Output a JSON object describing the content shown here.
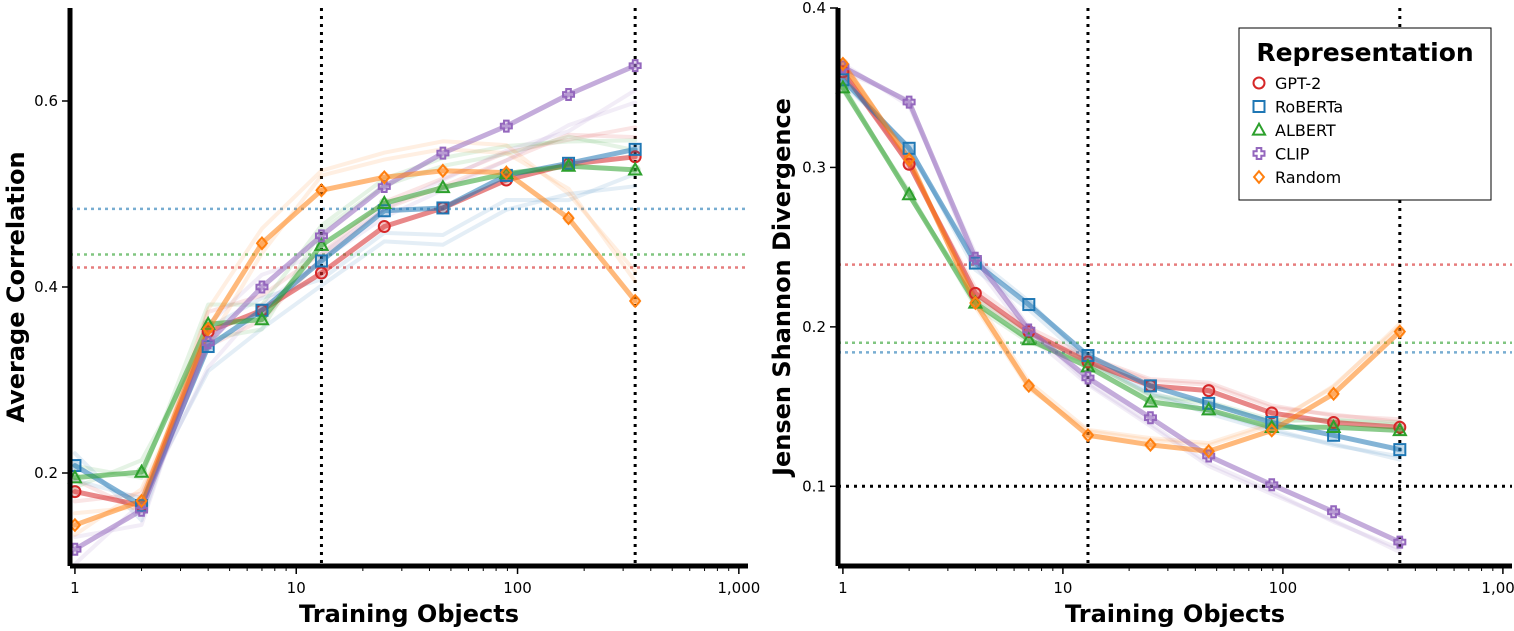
{
  "colors": {
    "GPT-2": "#d62728",
    "RoBERTa": "#1f77b4",
    "ALBERT": "#2ca02c",
    "CLIP": "#9467bd",
    "Random": "#ff7f0e"
  },
  "legend": {
    "title": "Representation",
    "entries": [
      {
        "name": "GPT-2",
        "marker": "circle"
      },
      {
        "name": "RoBERTa",
        "marker": "square"
      },
      {
        "name": "ALBERT",
        "marker": "triangle"
      },
      {
        "name": "CLIP",
        "marker": "plus"
      },
      {
        "name": "Random",
        "marker": "diamond"
      }
    ]
  },
  "chart_data": [
    {
      "type": "line",
      "xscale": "log",
      "xlabel": "Training Objects",
      "ylabel": "Average Correlation",
      "xlim": [
        0.95,
        1100
      ],
      "ylim": [
        0.1,
        0.7
      ],
      "xticks": [
        1,
        10,
        100,
        1000
      ],
      "xtick_labels": [
        "1",
        "10",
        "100",
        "1,000"
      ],
      "yticks": [
        0.2,
        0.4,
        0.6
      ],
      "ytick_labels": [
        "0.2",
        "0.4",
        "0.6"
      ],
      "x": [
        1,
        2,
        4,
        7,
        13,
        25,
        46,
        89,
        170,
        340
      ],
      "vlines": [
        13,
        340
      ],
      "hlines": [
        {
          "series": "RoBERTa",
          "y": 0.484
        },
        {
          "series": "ALBERT",
          "y": 0.435
        },
        {
          "series": "GPT-2",
          "y": 0.421
        }
      ],
      "series": [
        {
          "name": "GPT-2",
          "values": [
            0.18,
            0.165,
            0.352,
            0.375,
            0.415,
            0.465,
            0.485,
            0.515,
            0.532,
            0.54
          ]
        },
        {
          "name": "RoBERTa",
          "values": [
            0.208,
            0.165,
            0.336,
            0.375,
            0.428,
            0.482,
            0.485,
            0.52,
            0.533,
            0.548
          ]
        },
        {
          "name": "ALBERT",
          "values": [
            0.195,
            0.201,
            0.36,
            0.365,
            0.445,
            0.49,
            0.507,
            0.522,
            0.53,
            0.526
          ]
        },
        {
          "name": "CLIP",
          "values": [
            0.118,
            0.16,
            0.34,
            0.4,
            0.455,
            0.508,
            0.544,
            0.573,
            0.607,
            0.638
          ]
        },
        {
          "name": "Random",
          "values": [
            0.144,
            0.17,
            0.355,
            0.447,
            0.504,
            0.518,
            0.525,
            0.523,
            0.474,
            0.385
          ]
        }
      ]
    },
    {
      "type": "line",
      "xscale": "log",
      "xlabel": "Training Objects",
      "ylabel": "Jensen Shannon Divergence",
      "xlim": [
        0.95,
        1100
      ],
      "ylim": [
        0.05,
        0.4
      ],
      "xticks": [
        1,
        10,
        100,
        1000
      ],
      "xtick_labels": [
        "1",
        "10",
        "100",
        "1,000"
      ],
      "yticks": [
        0.1,
        0.2,
        0.3,
        0.4
      ],
      "ytick_labels": [
        "0.1",
        "0.2",
        "0.3",
        "0.4"
      ],
      "x": [
        1,
        2,
        4,
        7,
        13,
        25,
        46,
        89,
        170,
        340
      ],
      "vlines": [
        13,
        340
      ],
      "hlines": [
        {
          "series": "GPT-2",
          "y": 0.239
        },
        {
          "series": "ALBERT",
          "y": 0.19
        },
        {
          "series": "RoBERTa",
          "y": 0.184
        },
        {
          "series": "black",
          "y": 0.1
        }
      ],
      "series": [
        {
          "name": "GPT-2",
          "values": [
            0.36,
            0.302,
            0.221,
            0.197,
            0.178,
            0.163,
            0.16,
            0.146,
            0.14,
            0.137
          ]
        },
        {
          "name": "RoBERTa",
          "values": [
            0.355,
            0.312,
            0.24,
            0.214,
            0.182,
            0.163,
            0.152,
            0.14,
            0.132,
            0.123
          ]
        },
        {
          "name": "ALBERT",
          "values": [
            0.35,
            0.283,
            0.215,
            0.192,
            0.175,
            0.153,
            0.148,
            0.137,
            0.137,
            0.135
          ]
        },
        {
          "name": "CLIP",
          "values": [
            0.363,
            0.341,
            0.243,
            0.198,
            0.168,
            0.143,
            0.119,
            0.101,
            0.084,
            0.065
          ]
        },
        {
          "name": "Random",
          "values": [
            0.365,
            0.305,
            0.215,
            0.163,
            0.132,
            0.126,
            0.122,
            0.135,
            0.158,
            0.197
          ]
        }
      ]
    }
  ]
}
